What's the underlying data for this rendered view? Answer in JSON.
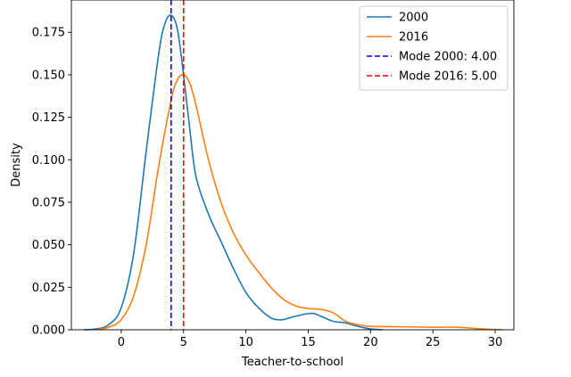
{
  "chart_data": {
    "type": "line",
    "xlabel": "Teacher-to-school",
    "ylabel": "Density",
    "xlim": [
      -4,
      31.5
    ],
    "ylim": [
      0,
      0.194
    ],
    "x_ticks": [
      0,
      5,
      10,
      15,
      20,
      25,
      30
    ],
    "y_ticks": [
      0.0,
      0.025,
      0.05,
      0.075,
      0.1,
      0.125,
      0.15,
      0.175
    ],
    "y_tick_labels": [
      "0.000",
      "0.025",
      "0.050",
      "0.075",
      "0.100",
      "0.125",
      "0.150",
      "0.175"
    ],
    "legend_position": "top-right",
    "series": [
      {
        "name": "2000",
        "color": "#1f77b4",
        "x": [
          -3.0,
          -2.0,
          -1.0,
          0.0,
          1.0,
          2.0,
          3.0,
          3.5,
          4.0,
          4.5,
          5.0,
          5.5,
          6.0,
          7.0,
          8.0,
          9.0,
          10.0,
          11.0,
          12.0,
          12.5,
          13.0,
          14.0,
          15.0,
          15.5,
          16.0,
          17.0,
          18.0,
          19.0,
          20.0,
          21.0
        ],
        "y": [
          0.0,
          0.0005,
          0.003,
          0.013,
          0.045,
          0.105,
          0.162,
          0.18,
          0.185,
          0.177,
          0.15,
          0.118,
          0.09,
          0.068,
          0.052,
          0.036,
          0.022,
          0.013,
          0.007,
          0.006,
          0.006,
          0.008,
          0.0095,
          0.0095,
          0.008,
          0.005,
          0.004,
          0.002,
          0.0005,
          0.0
        ]
      },
      {
        "name": "2016",
        "color": "#ff7f0e",
        "x": [
          -2.0,
          -1.0,
          0.0,
          1.0,
          2.0,
          3.0,
          4.0,
          4.5,
          5.0,
          5.5,
          6.0,
          7.0,
          8.0,
          9.0,
          10.0,
          11.0,
          12.0,
          13.0,
          14.0,
          15.0,
          16.0,
          17.0,
          18.0,
          19.0,
          20.0,
          22.0,
          25.0,
          27.0,
          28.0,
          29.0,
          30.5
        ],
        "y": [
          0.0,
          0.0015,
          0.006,
          0.02,
          0.05,
          0.096,
          0.135,
          0.147,
          0.15,
          0.145,
          0.132,
          0.1,
          0.075,
          0.057,
          0.044,
          0.034,
          0.025,
          0.018,
          0.014,
          0.0125,
          0.012,
          0.01,
          0.005,
          0.003,
          0.002,
          0.0018,
          0.0015,
          0.0015,
          0.001,
          0.0005,
          0.0
        ]
      }
    ],
    "modes": [
      {
        "label": "Mode 2000: 4.00",
        "x": 4.0,
        "color": "#0000ff"
      },
      {
        "label": "Mode 2016: 5.00",
        "x": 5.0,
        "color": "#ff0000"
      }
    ]
  }
}
